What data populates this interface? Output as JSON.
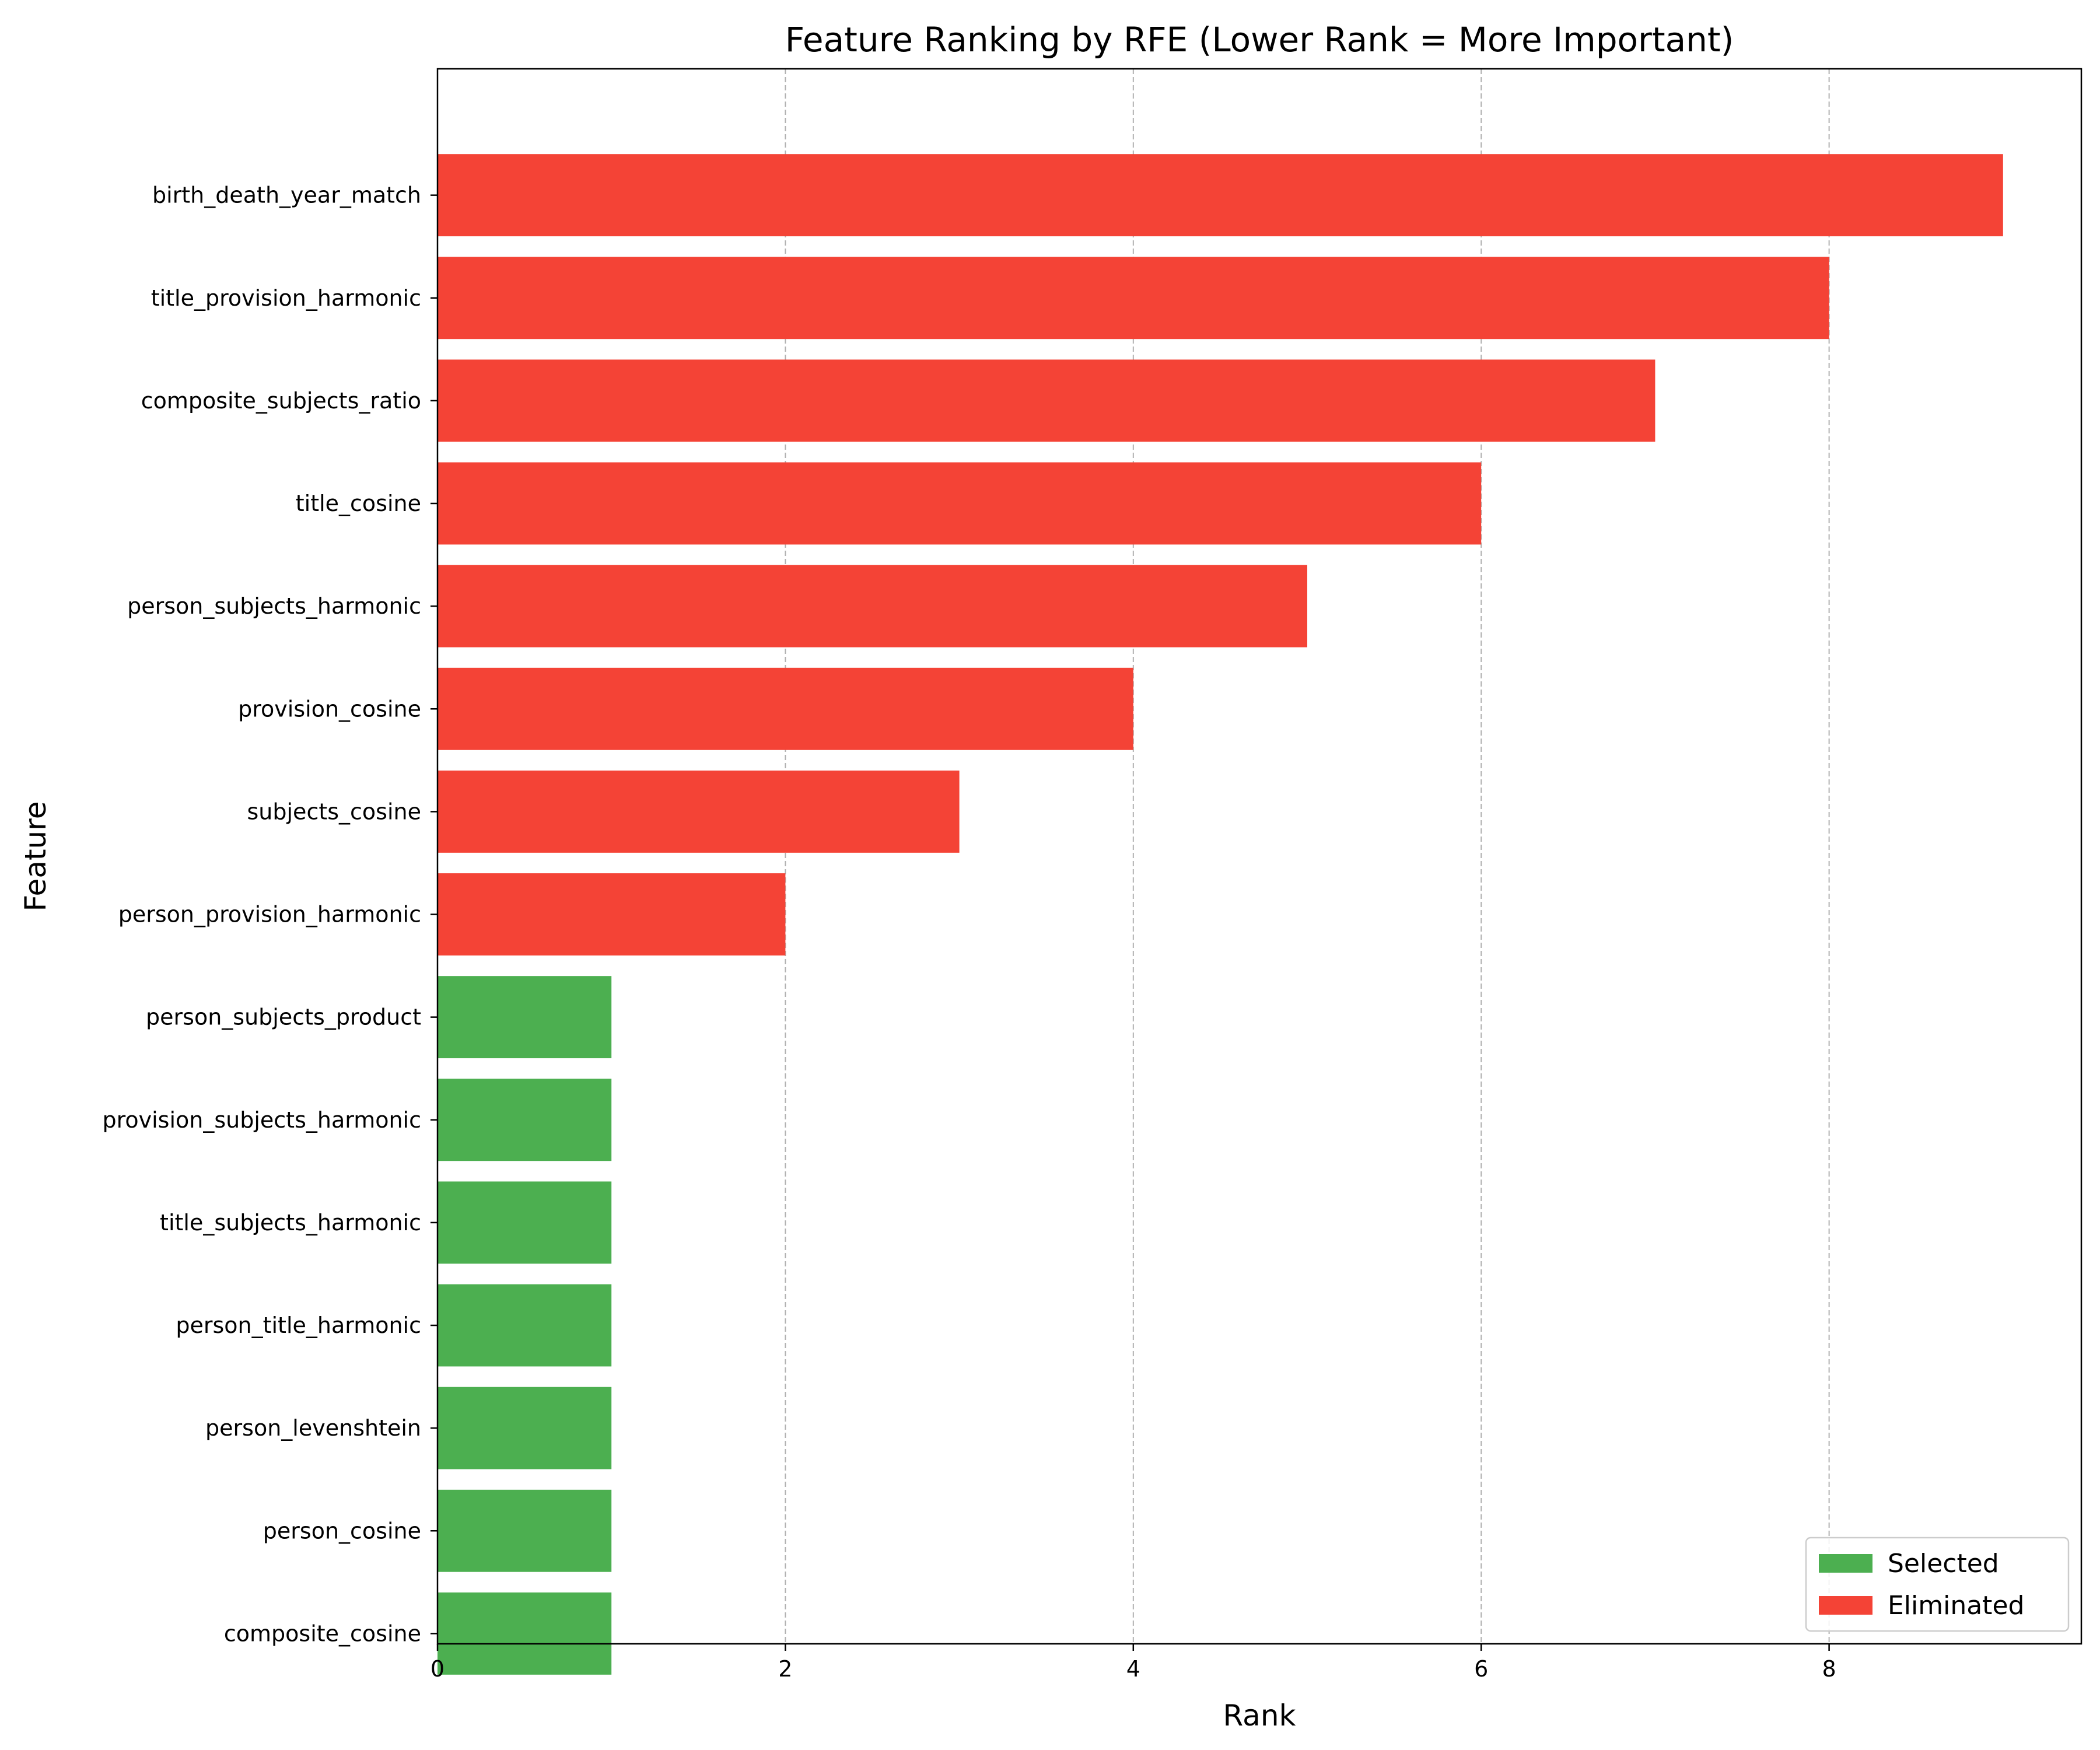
{
  "chart_data": {
    "type": "bar",
    "orientation": "horizontal",
    "title": "Feature Ranking by RFE (Lower Rank = More Important)",
    "xlabel": "Rank",
    "ylabel": "Feature",
    "xlim": [
      0,
      9.45
    ],
    "xticks": [
      0,
      2,
      4,
      6,
      8
    ],
    "grid": "x-dashed",
    "legend_position": "lower-right",
    "colors": {
      "selected": "#4caf50",
      "eliminated": "#f44336"
    },
    "legend": [
      {
        "key": "selected",
        "label": "Selected"
      },
      {
        "key": "eliminated",
        "label": "Eliminated"
      }
    ],
    "categories": [
      "birth_death_year_match",
      "title_provision_harmonic",
      "composite_subjects_ratio",
      "title_cosine",
      "person_subjects_harmonic",
      "provision_cosine",
      "subjects_cosine",
      "person_provision_harmonic",
      "person_subjects_product",
      "provision_subjects_harmonic",
      "title_subjects_harmonic",
      "person_title_harmonic",
      "person_levenshtein",
      "person_cosine",
      "composite_cosine"
    ],
    "values": [
      9,
      8,
      7,
      6,
      5,
      4,
      3,
      2,
      1,
      1,
      1,
      1,
      1,
      1,
      1
    ],
    "status": [
      "eliminated",
      "eliminated",
      "eliminated",
      "eliminated",
      "eliminated",
      "eliminated",
      "eliminated",
      "eliminated",
      "selected",
      "selected",
      "selected",
      "selected",
      "selected",
      "selected",
      "selected"
    ]
  }
}
